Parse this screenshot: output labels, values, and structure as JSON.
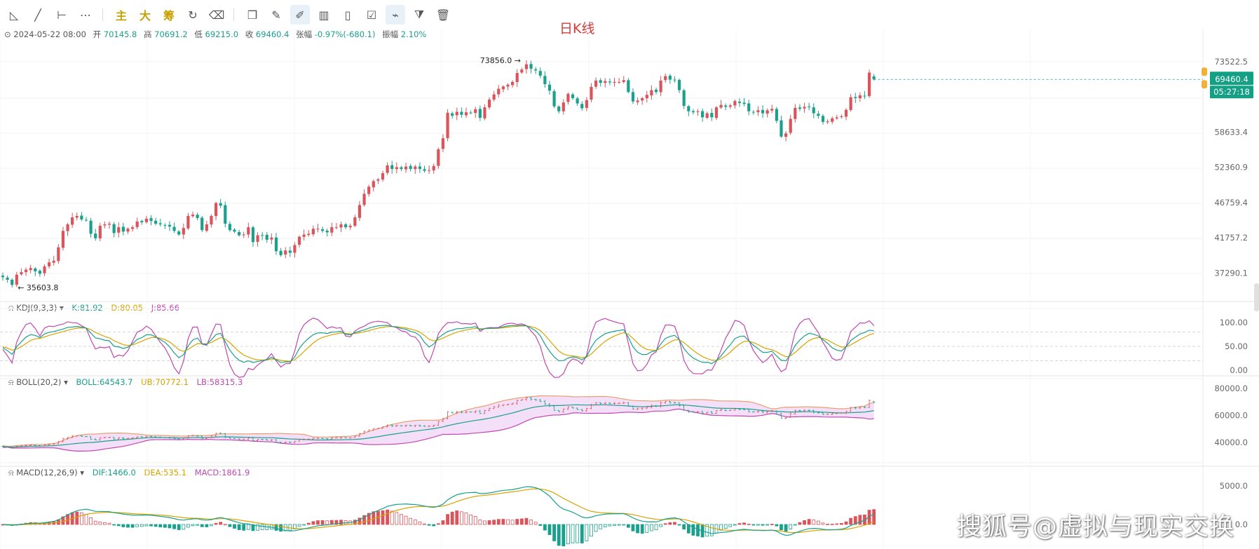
{
  "chart_title": "日K线",
  "toolbar": {
    "icons": [
      "trend-line-icon",
      "ray-line-icon",
      "horizontal-segment-icon",
      "more-dots-icon"
    ],
    "main_label": "主",
    "big_label": "大",
    "chip_label": "筹",
    "icons2": [
      "refresh-icon",
      "eraser-icon",
      "copy-icon",
      "ruler-icon",
      "pen-icon",
      "candles-icon",
      "clipboard-icon",
      "edit-icon",
      "magnet-icon",
      "filter-icon",
      "trash-icon"
    ]
  },
  "ohlc": {
    "date": "2024-05-22 08:00",
    "open_label": "开",
    "open": "70145.8",
    "high_label": "高",
    "high": "70691.2",
    "low_label": "低",
    "low": "69215.0",
    "close_label": "收",
    "close": "69460.4",
    "change_label": "张幅",
    "change": "-0.97%(-680.1)",
    "amp_label": "振幅",
    "amp": "2.10%"
  },
  "price_axis": {
    "ticks": [
      "73522.5",
      "58633.4",
      "52360.9",
      "46759.4",
      "41757.2",
      "37290.1"
    ],
    "current_price": "69460.4",
    "countdown": "05:27:18",
    "max_label": "73856.0",
    "min_label": "35603.8"
  },
  "kdj": {
    "name": "KDJ(9,3,3)",
    "k": "K:81.92",
    "d": "D:80.05",
    "j": "J:85.66",
    "ticks": [
      "100.00",
      "50.00",
      "0.00"
    ]
  },
  "boll": {
    "name": "BOLL(20,2)",
    "mid": "BOLL:64543.7",
    "ub": "UB:70772.1",
    "lb": "LB:58315.3",
    "ticks": [
      "80000.0",
      "60000.0",
      "40000.0"
    ]
  },
  "macd": {
    "name": "MACD(12,26,9)",
    "dif": "DIF:1466.0",
    "dea": "DEA:535.1",
    "macd": "MACD:1861.9",
    "ticks": [
      "5000.0",
      "0.0"
    ]
  },
  "watermark": "搜狐号@虚拟与现实交换",
  "colors": {
    "up": "#d9545b",
    "down": "#1aa08c",
    "kline": "#1aa08c",
    "dline": "#d8a300",
    "jline": "#c048b0",
    "boll_fill": "#f3dcf7"
  },
  "chart_data": {
    "type": "candlestick",
    "interval": "1d",
    "closes": [
      36800,
      36500,
      35900,
      37100,
      37400,
      37700,
      37900,
      37500,
      37200,
      38100,
      38600,
      38800,
      40500,
      42700,
      43600,
      44600,
      44800,
      44300,
      44200,
      42300,
      41700,
      43400,
      43600,
      43700,
      42400,
      43200,
      42600,
      43000,
      43200,
      44000,
      43900,
      44400,
      44100,
      43700,
      43600,
      43500,
      43300,
      42700,
      42200,
      43100,
      44800,
      45000,
      44500,
      42800,
      43600,
      44800,
      46700,
      46300,
      43700,
      42800,
      42600,
      42100,
      42200,
      43200,
      41200,
      42100,
      42100,
      41500,
      41800,
      40000,
      39500,
      40100,
      39800,
      40800,
      41900,
      42200,
      42300,
      43000,
      43000,
      42700,
      42500,
      43200,
      43200,
      43600,
      43200,
      43400,
      44600,
      46400,
      48100,
      49200,
      50100,
      50400,
      51400,
      52700,
      52100,
      52400,
      52100,
      52500,
      52100,
      52500,
      52100,
      51800,
      51900,
      52600,
      55500,
      57500,
      62400,
      61800,
      62600,
      62000,
      62500,
      62400,
      63100,
      61400,
      63500,
      65100,
      66200,
      67400,
      67900,
      68300,
      68900,
      70900,
      71700,
      72900,
      71900,
      71500,
      70300,
      68400,
      67000,
      63700,
      62700,
      64500,
      66300,
      65400,
      64300,
      63300,
      65000,
      67800,
      69200,
      68700,
      69100,
      68800,
      68900,
      68900,
      69300,
      66700,
      64700,
      64900,
      65400,
      66100,
      67100,
      66700,
      69200,
      70200,
      69400,
      69300,
      67100,
      63800,
      62700,
      62500,
      62700,
      61500,
      62300,
      61500,
      63500,
      64000,
      63600,
      63900,
      64800,
      64400,
      64200,
      62700,
      62500,
      62900,
      62300,
      62900,
      63200,
      60800,
      57800,
      58400,
      61200,
      63400,
      63200,
      63600,
      63600,
      62300,
      61800,
      60600,
      60700,
      61300,
      61500,
      61700,
      63000,
      65600,
      65400,
      66000,
      65900,
      71000,
      69460.4
    ],
    "high": 73856.0,
    "low": 35603.8,
    "last": {
      "open": 70145.8,
      "high": 70691.2,
      "low": 69215.0,
      "close": 69460.4
    },
    "yticks": [
      73522.5,
      58633.4,
      52360.9,
      46759.4,
      41757.2,
      37290.1
    ]
  }
}
